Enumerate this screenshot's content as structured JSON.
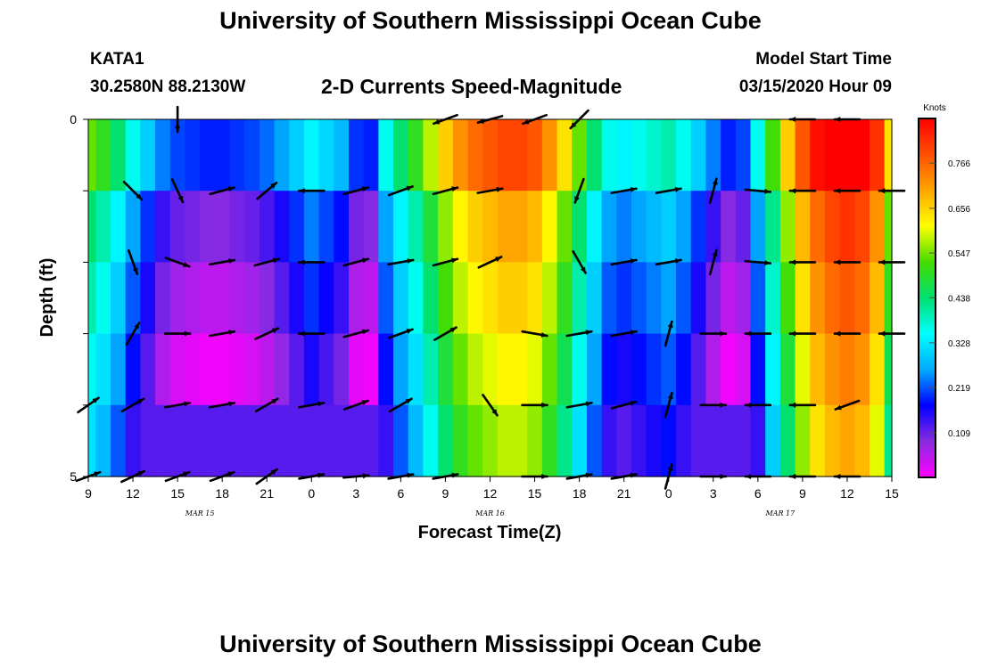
{
  "header": {
    "title": "University of Southern Mississippi Ocean Cube",
    "station": "KATA1",
    "coordinates": "30.2580N 88.2130W",
    "chart_title": "2-D Currents Speed-Magnitude",
    "start_label": "Model Start Time",
    "start_value": "03/15/2020 Hour 09"
  },
  "footer": {
    "title": "University of Southern Mississippi Ocean Cube"
  },
  "chart_data": {
    "type": "heatmap",
    "title": "2-D Currents Speed-Magnitude",
    "xlabel": "Forecast Time(Z)",
    "ylabel": "Depth (ft)",
    "x_range_hours": [
      0,
      54
    ],
    "x_tick_labels": [
      "9",
      "12",
      "15",
      "18",
      "21",
      "0",
      "3",
      "6",
      "9",
      "12",
      "15",
      "18",
      "21",
      "0",
      "3",
      "6",
      "9",
      "12",
      "15"
    ],
    "x_date_labels": [
      {
        "label": "MAR 15",
        "hour": 7.5
      },
      {
        "label": "MAR 16",
        "hour": 27
      },
      {
        "label": "MAR 17",
        "hour": 46.5
      }
    ],
    "y_tick_labels": [
      "0",
      "5"
    ],
    "y_range": [
      0,
      5
    ],
    "layers": 5,
    "colorbar": {
      "unit": "Knots",
      "min": 0,
      "max": 0.875,
      "ticks": [
        "0.766",
        "0.656",
        "0.547",
        "0.438",
        "0.328",
        "0.219",
        "0.109"
      ],
      "tick_values": [
        0.766,
        0.656,
        0.547,
        0.438,
        0.328,
        0.219,
        0.109
      ],
      "colors": [
        "#ff00ff",
        "#8a2be2",
        "#0000ff",
        "#00aaff",
        "#00ffff",
        "#00e070",
        "#44dd00",
        "#ffff00",
        "#ffa500",
        "#ff5000",
        "#ff0000"
      ]
    },
    "speed_profile": {
      "hours": [
        0,
        1,
        2,
        3,
        4,
        5,
        6,
        7,
        8,
        9,
        10,
        11,
        12,
        13,
        14,
        15,
        16,
        17,
        18,
        19,
        20,
        21,
        22,
        23,
        24,
        25,
        26,
        27,
        28,
        29,
        30,
        31,
        32,
        33,
        34,
        35,
        36,
        37,
        38,
        39,
        40,
        41,
        42,
        43,
        44,
        45,
        46,
        47,
        48,
        49,
        50,
        51,
        52,
        53,
        54
      ],
      "base_knots": [
        0.4,
        0.36,
        0.3,
        0.22,
        0.16,
        0.1,
        0.07,
        0.06,
        0.05,
        0.05,
        0.06,
        0.07,
        0.09,
        0.12,
        0.16,
        0.2,
        0.17,
        0.14,
        0.06,
        0.05,
        0.22,
        0.3,
        0.36,
        0.44,
        0.52,
        0.58,
        0.62,
        0.64,
        0.66,
        0.66,
        0.64,
        0.58,
        0.5,
        0.4,
        0.3,
        0.22,
        0.2,
        0.22,
        0.24,
        0.26,
        0.22,
        0.16,
        0.1,
        0.05,
        0.07,
        0.22,
        0.38,
        0.52,
        0.64,
        0.72,
        0.76,
        0.78,
        0.76,
        0.68,
        0.5
      ],
      "layer_offsets": [
        0.14,
        0.04,
        0.0,
        -0.04,
        -0.08
      ],
      "layer_min": [
        0,
        0,
        0,
        0,
        0.12
      ]
    },
    "vectors": {
      "hours": [
        0,
        3,
        6,
        9,
        12,
        15,
        18,
        21,
        24,
        27,
        30,
        33,
        36,
        39,
        42,
        45,
        48,
        51,
        54
      ],
      "depths": [
        0,
        1,
        2,
        3,
        4,
        5
      ],
      "direction_deg": [
        [
          null,
          null,
          180,
          null,
          null,
          null,
          null,
          null,
          250,
          255,
          250,
          225,
          null,
          null,
          null,
          null,
          270,
          270,
          null
        ],
        [
          null,
          135,
          155,
          75,
          50,
          270,
          75,
          70,
          75,
          80,
          null,
          200,
          80,
          80,
          15,
          95,
          270,
          270,
          270
        ],
        [
          null,
          160,
          110,
          80,
          75,
          270,
          75,
          80,
          75,
          65,
          null,
          150,
          80,
          80,
          15,
          95,
          270,
          270,
          270
        ],
        [
          null,
          30,
          90,
          80,
          65,
          270,
          75,
          70,
          60,
          null,
          100,
          80,
          80,
          15,
          90,
          270,
          270,
          270,
          270
        ],
        [
          55,
          60,
          80,
          80,
          60,
          80,
          70,
          60,
          null,
          145,
          90,
          80,
          75,
          15,
          90,
          270,
          270,
          250,
          null
        ],
        [
          70,
          65,
          70,
          70,
          55,
          80,
          85,
          80,
          80,
          null,
          90,
          80,
          80,
          15,
          90,
          270,
          270,
          270,
          null
        ]
      ]
    }
  }
}
